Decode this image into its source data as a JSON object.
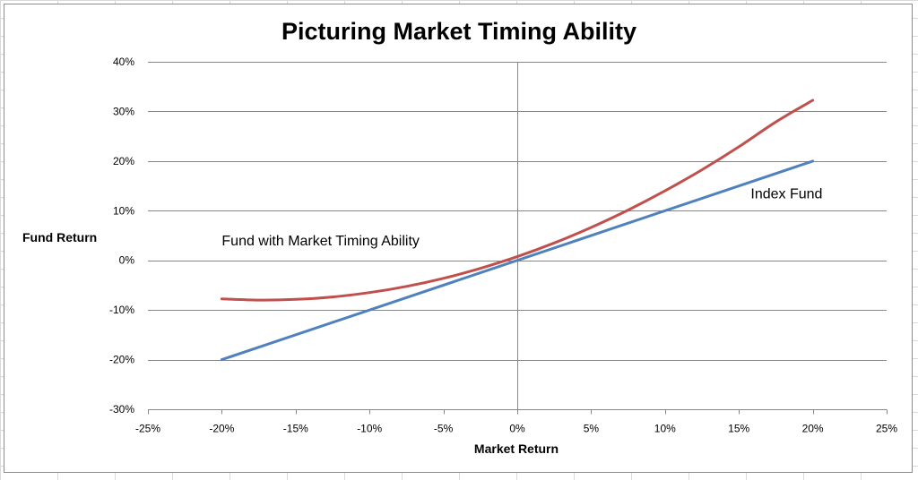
{
  "chart_data": {
    "type": "line",
    "title": "Picturing Market Timing Ability",
    "xlabel": "Market Return",
    "ylabel": "Fund Return",
    "xlim": [
      -0.25,
      0.25
    ],
    "ylim": [
      -0.3,
      0.4
    ],
    "x_ticks": [
      -0.25,
      -0.2,
      -0.15,
      -0.1,
      -0.05,
      0,
      0.05,
      0.1,
      0.15,
      0.2,
      0.25
    ],
    "x_tick_labels": [
      "-25%",
      "-20%",
      "-15%",
      "-10%",
      "-5%",
      "0%",
      "5%",
      "10%",
      "15%",
      "20%",
      "25%"
    ],
    "y_ticks": [
      -0.3,
      -0.2,
      -0.1,
      0,
      0.1,
      0.2,
      0.3,
      0.4
    ],
    "y_tick_labels": [
      "-30%",
      "-20%",
      "-10%",
      "0%",
      "10%",
      "20%",
      "30%",
      "40%"
    ],
    "grid": "horizontal",
    "legend": "none",
    "series": [
      {
        "name": "Index Fund",
        "color": "#4f81bd",
        "x": [
          -0.2,
          0.2
        ],
        "y": [
          -0.2,
          0.2
        ]
      },
      {
        "name": "Fund with Market Timing Ability",
        "color": "#c0504d",
        "x": [
          -0.2,
          -0.175,
          -0.15,
          -0.125,
          -0.1,
          -0.075,
          -0.05,
          -0.025,
          0,
          0.025,
          0.05,
          0.075,
          0.1,
          0.125,
          0.15,
          0.175,
          0.2
        ],
        "y": [
          -0.0775,
          -0.08,
          -0.0787,
          -0.0737,
          -0.065,
          -0.0525,
          -0.0363,
          -0.0162,
          0.0075,
          0.035,
          0.0663,
          0.1012,
          0.14,
          0.1825,
          0.2288,
          0.2788,
          0.3225
        ]
      }
    ],
    "annotations": [
      {
        "text": "Index Fund",
        "x": 0.158,
        "y": 0.125
      },
      {
        "text": "Fund with Market Timing Ability",
        "x": -0.2,
        "y": 0.03
      }
    ]
  }
}
